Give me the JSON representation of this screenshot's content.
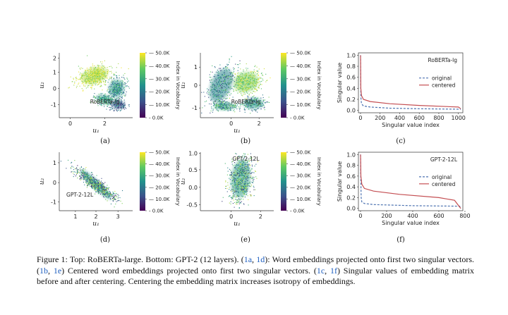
{
  "figure": {
    "panels": [
      {
        "id": "a",
        "label": "(a)",
        "annotation": "RoBERTa-lg",
        "kind": "scatter",
        "xticks": [
          "0",
          "2"
        ],
        "yticks": [
          "2",
          "1",
          "0",
          "-1"
        ],
        "xlabel": "u₁",
        "ylabel": "u₂"
      },
      {
        "id": "b",
        "label": "(b)",
        "annotation": "RoBERTa-lg",
        "kind": "scatter",
        "xticks": [
          "0",
          "2"
        ],
        "yticks": [
          "1",
          "0",
          "-1"
        ],
        "xlabel": "u₁",
        "ylabel": "u₂"
      },
      {
        "id": "c",
        "label": "(c)",
        "annotation": "RoBERTa-lg",
        "kind": "line",
        "xticks": [
          "0",
          "200",
          "400",
          "600",
          "800",
          "1000"
        ],
        "yticks": [
          "1.0",
          "0.8",
          "0.6",
          "0.4",
          "0.2",
          "0.0"
        ],
        "xlabel": "Singular value index",
        "ylabel": "Singular value",
        "legend": [
          "original",
          "centered"
        ]
      },
      {
        "id": "d",
        "label": "(d)",
        "annotation": "GPT-2-12L",
        "kind": "scatter",
        "xticks": [
          "1",
          "2",
          "3"
        ],
        "yticks": [
          "1",
          "0",
          "-1"
        ],
        "xlabel": "u₁",
        "ylabel": "u₂"
      },
      {
        "id": "e",
        "label": "(e)",
        "annotation": "GPT-2-12L",
        "kind": "scatter",
        "xticks": [
          "0",
          "2"
        ],
        "yticks": [
          "1.0",
          "0.5",
          "0.0",
          "-0.5"
        ],
        "xlabel": "u₁",
        "ylabel": "u₂"
      },
      {
        "id": "f",
        "label": "(f)",
        "annotation": "GPT-2-12L",
        "kind": "line",
        "xticks": [
          "0",
          "200",
          "400",
          "600",
          "800"
        ],
        "yticks": [
          "1.0",
          "0.8",
          "0.6",
          "0.4",
          "0.2",
          "0.0"
        ],
        "xlabel": "Singular value index",
        "ylabel": "Singular value",
        "legend": [
          "original",
          "centered"
        ]
      }
    ],
    "colorbar": {
      "ticks": [
        "50.0K",
        "40.0K",
        "30.0K",
        "20.0K",
        "10.0K",
        "0.0K"
      ],
      "label": "Index in Vocabulary"
    },
    "colors": {
      "viridis_low": "#440154",
      "viridis_mid": "#21918c",
      "viridis_high": "#fde725",
      "original": "#4c72b0",
      "centered": "#c44e52"
    }
  },
  "chart_data": [
    {
      "type": "line",
      "panel": "c",
      "title": "RoBERTa-lg",
      "xlabel": "Singular value index",
      "ylabel": "Singular value",
      "xlim": [
        0,
        1024
      ],
      "ylim": [
        0,
        1.0
      ],
      "series": [
        {
          "name": "original",
          "x": [
            0,
            3,
            10,
            30,
            100,
            300,
            600,
            1024
          ],
          "values": [
            1.0,
            0.25,
            0.12,
            0.08,
            0.06,
            0.04,
            0.03,
            0.02
          ]
        },
        {
          "name": "centered",
          "x": [
            0,
            3,
            10,
            30,
            100,
            300,
            600,
            1000,
            1024
          ],
          "values": [
            1.0,
            0.4,
            0.27,
            0.2,
            0.16,
            0.12,
            0.09,
            0.06,
            0.03
          ]
        }
      ],
      "legend_position": "right"
    },
    {
      "type": "line",
      "panel": "f",
      "title": "GPT-2-12L",
      "xlabel": "Singular value index",
      "ylabel": "Singular value",
      "xlim": [
        0,
        768
      ],
      "ylim": [
        0,
        1.0
      ],
      "series": [
        {
          "name": "original",
          "x": [
            0,
            2,
            5,
            10,
            30,
            100,
            400,
            760,
            768
          ],
          "values": [
            1.0,
            0.6,
            0.2,
            0.12,
            0.09,
            0.07,
            0.05,
            0.04,
            0.0
          ],
          "dashed": true
        },
        {
          "name": "centered",
          "x": [
            0,
            3,
            10,
            30,
            100,
            300,
            600,
            720,
            768
          ],
          "values": [
            1.0,
            0.6,
            0.45,
            0.37,
            0.32,
            0.26,
            0.2,
            0.15,
            0.0
          ]
        }
      ],
      "legend_position": "right"
    }
  ],
  "caption": {
    "prefix": "Figure 1: Top: RoBERTa-large. Bottom: GPT-2 (12 layers). (",
    "r1a": "1a",
    "c1": ", ",
    "r1d": "1d",
    "t1": "): Word embeddings projected onto first two singular vectors. (",
    "r1b": "1b",
    "c2": ", ",
    "r1e": "1e",
    "t2": ") Centered word embeddings projected onto first two singular vectors. (",
    "r1c": "1c",
    "c3": ", ",
    "r1f": "1f",
    "t3": ") Singular values of embedding matrix before and after centering. Centering the embedding matrix increases isotropy of embeddings."
  }
}
